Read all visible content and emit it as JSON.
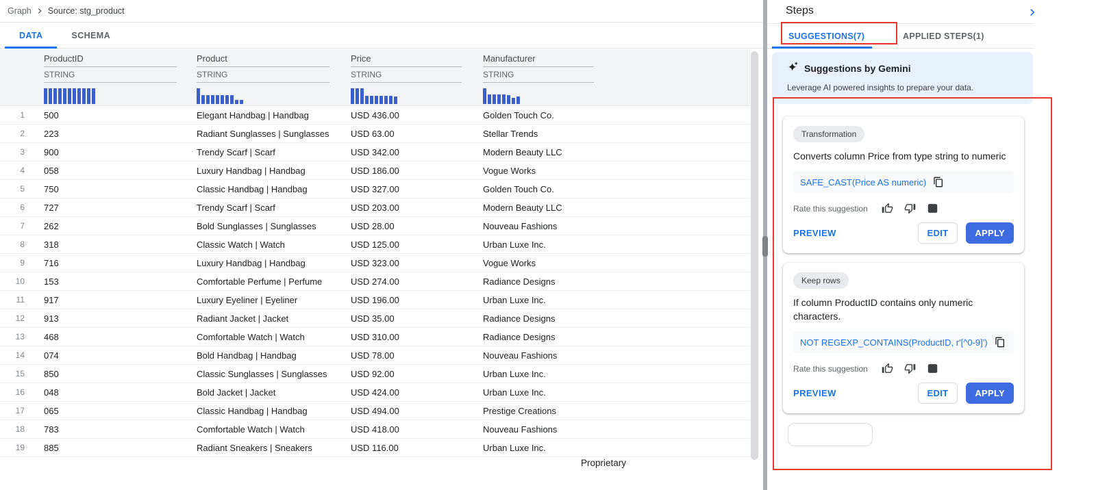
{
  "breadcrumb": {
    "items": [
      "Graph",
      "Source: stg_product"
    ]
  },
  "main_tabs": [
    {
      "label": "DATA",
      "active": true
    },
    {
      "label": "SCHEMA",
      "active": false
    }
  ],
  "table": {
    "columns": [
      {
        "name": "ProductID",
        "type": "STRING",
        "histogram": [
          1,
          1,
          1,
          1,
          1,
          1,
          1,
          1,
          1,
          1,
          1
        ]
      },
      {
        "name": "Product",
        "type": "STRING",
        "histogram": [
          1,
          0.55,
          0.55,
          0.55,
          0.55,
          0.55,
          0.55,
          0.55,
          0.28,
          0.28
        ]
      },
      {
        "name": "Price",
        "type": "STRING",
        "histogram": [
          1,
          1,
          1,
          0.5,
          0.5,
          0.5,
          0.5,
          0.5,
          0.5,
          0.48
        ]
      },
      {
        "name": "Manufacturer",
        "type": "STRING",
        "histogram": [
          1,
          0.62,
          0.62,
          0.6,
          0.6,
          0.58,
          0.4,
          0.48
        ]
      }
    ],
    "rows": [
      {
        "num": "1",
        "product_id": "500",
        "product": "Elegant Handbag | Handbag",
        "price": "USD 436.00",
        "manufacturer": "Golden Touch Co."
      },
      {
        "num": "2",
        "product_id": "223",
        "product": "Radiant Sunglasses | Sunglasses",
        "price": "USD 63.00",
        "manufacturer": "Stellar Trends"
      },
      {
        "num": "3",
        "product_id": "900",
        "product": "Trendy Scarf | Scarf",
        "price": "USD 342.00",
        "manufacturer": "Modern Beauty LLC"
      },
      {
        "num": "4",
        "product_id": "058",
        "product": "Luxury Handbag | Handbag",
        "price": "USD 186.00",
        "manufacturer": "Vogue Works"
      },
      {
        "num": "5",
        "product_id": "750",
        "product": "Classic Handbag | Handbag",
        "price": "USD 327.00",
        "manufacturer": "Golden Touch Co."
      },
      {
        "num": "6",
        "product_id": "727",
        "product": "Trendy Scarf | Scarf",
        "price": "USD 203.00",
        "manufacturer": "Modern Beauty LLC"
      },
      {
        "num": "7",
        "product_id": "262",
        "product": "Bold Sunglasses | Sunglasses",
        "price": "USD 28.00",
        "manufacturer": "Nouveau Fashions"
      },
      {
        "num": "8",
        "product_id": "318",
        "product": "Classic Watch | Watch",
        "price": "USD 125.00",
        "manufacturer": "Urban Luxe Inc."
      },
      {
        "num": "9",
        "product_id": "716",
        "product": "Luxury Handbag | Handbag",
        "price": "USD 323.00",
        "manufacturer": "Vogue Works"
      },
      {
        "num": "10",
        "product_id": "153",
        "product": "Comfortable Perfume | Perfume",
        "price": "USD 274.00",
        "manufacturer": "Radiance Designs"
      },
      {
        "num": "11",
        "product_id": "917",
        "product": "Luxury Eyeliner | Eyeliner",
        "price": "USD 196.00",
        "manufacturer": "Urban Luxe Inc."
      },
      {
        "num": "12",
        "product_id": "913",
        "product": "Radiant Jacket | Jacket",
        "price": "USD 35.00",
        "manufacturer": "Radiance Designs"
      },
      {
        "num": "13",
        "product_id": "468",
        "product": "Comfortable Watch | Watch",
        "price": "USD 310.00",
        "manufacturer": "Radiance Designs"
      },
      {
        "num": "14",
        "product_id": "074",
        "product": "Bold Handbag | Handbag",
        "price": "USD 78.00",
        "manufacturer": "Nouveau Fashions"
      },
      {
        "num": "15",
        "product_id": "850",
        "product": "Classic Sunglasses | Sunglasses",
        "price": "USD 92.00",
        "manufacturer": "Urban Luxe Inc."
      },
      {
        "num": "16",
        "product_id": "048",
        "product": "Bold Jacket | Jacket",
        "price": "USD 424.00",
        "manufacturer": "Urban Luxe Inc."
      },
      {
        "num": "17",
        "product_id": "065",
        "product": "Classic Handbag | Handbag",
        "price": "USD 494.00",
        "manufacturer": "Prestige Creations"
      },
      {
        "num": "18",
        "product_id": "783",
        "product": "Comfortable Watch | Watch",
        "price": "USD 418.00",
        "manufacturer": "Nouveau Fashions"
      },
      {
        "num": "19",
        "product_id": "885",
        "product": "Radiant Sneakers | Sneakers",
        "price": "USD 116.00",
        "manufacturer": "Urban Luxe Inc."
      }
    ]
  },
  "footer": {
    "label": "Proprietary"
  },
  "steps_panel": {
    "title": "Steps",
    "tabs": [
      {
        "label": "SUGGESTIONS(7)",
        "active": true
      },
      {
        "label": "APPLIED STEPS(1)",
        "active": false
      }
    ],
    "gemini_banner": {
      "title": "Suggestions by Gemini",
      "subtitle": "Leverage AI powered insights to prepare your data."
    },
    "rate_label": "Rate this suggestion",
    "actions": {
      "preview": "PREVIEW",
      "edit": "EDIT",
      "apply": "APPLY"
    },
    "suggestions": [
      {
        "chip": "Transformation",
        "description": "Converts column Price from type string to numeric",
        "code": "SAFE_CAST(Price AS numeric)"
      },
      {
        "chip": "Keep rows",
        "description": "If column ProductID contains only numeric characters.",
        "code": "NOT REGEXP_CONTAINS(ProductID, r'[^0-9]')"
      }
    ]
  },
  "colors": {
    "accent_blue": "#1a73e8",
    "apply_button": "#3e6be0",
    "histogram_blue": "#3d5fcb",
    "gemini_banner_bg": "#e8f0fe",
    "annotation_red": "#e8382c",
    "header_band_bg": "#f2f3f4"
  }
}
